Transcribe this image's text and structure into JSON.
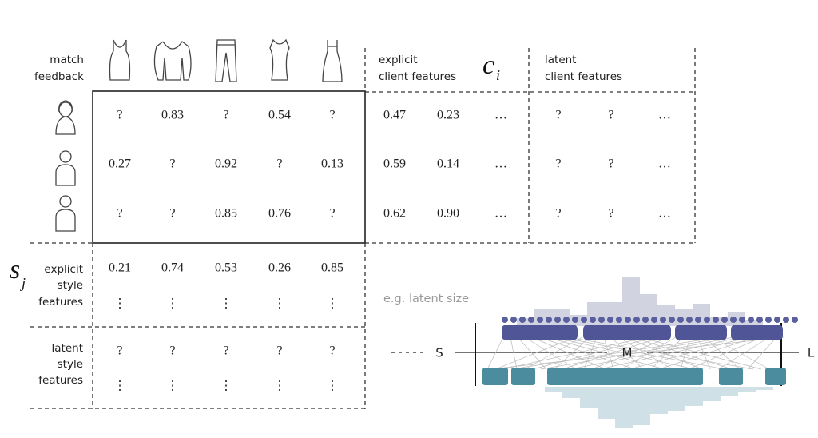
{
  "header": {
    "row_label": [
      "match",
      "feedback"
    ],
    "explicit_client": [
      "explicit",
      "client features"
    ],
    "client_symbol": "c",
    "client_subscript": "i",
    "latent_client": [
      "latent",
      "client features"
    ]
  },
  "matrix": {
    "rows": [
      [
        "?",
        "0.83",
        "?",
        "0.54",
        "?"
      ],
      [
        "0.27",
        "?",
        "0.92",
        "?",
        "0.13"
      ],
      [
        "?",
        "?",
        "0.85",
        "0.76",
        "?"
      ]
    ]
  },
  "explicit_client_features": {
    "rows": [
      [
        "0.47",
        "0.23",
        "…"
      ],
      [
        "0.59",
        "0.14",
        "…"
      ],
      [
        "0.62",
        "0.90",
        "…"
      ]
    ]
  },
  "latent_client_features": {
    "rows": [
      [
        "?",
        "?",
        "…"
      ],
      [
        "?",
        "?",
        "…"
      ],
      [
        "?",
        "?",
        "…"
      ]
    ]
  },
  "style": {
    "symbol": "s",
    "subscript": "j",
    "explicit_label": [
      "explicit",
      "style",
      "features"
    ],
    "explicit_rows": [
      [
        "0.21",
        "0.74",
        "0.53",
        "0.26",
        "0.85"
      ],
      [
        "⋮",
        "⋮",
        "⋮",
        "⋮",
        "⋮"
      ]
    ],
    "latent_label": [
      "latent",
      "style",
      "features"
    ],
    "latent_rows": [
      [
        "?",
        "?",
        "?",
        "?",
        "?"
      ],
      [
        "⋮",
        "⋮",
        "⋮",
        "⋮",
        "⋮"
      ]
    ]
  },
  "latent_size": {
    "caption": "e.g. latent size",
    "labels": [
      "S",
      "M",
      "L"
    ]
  }
}
